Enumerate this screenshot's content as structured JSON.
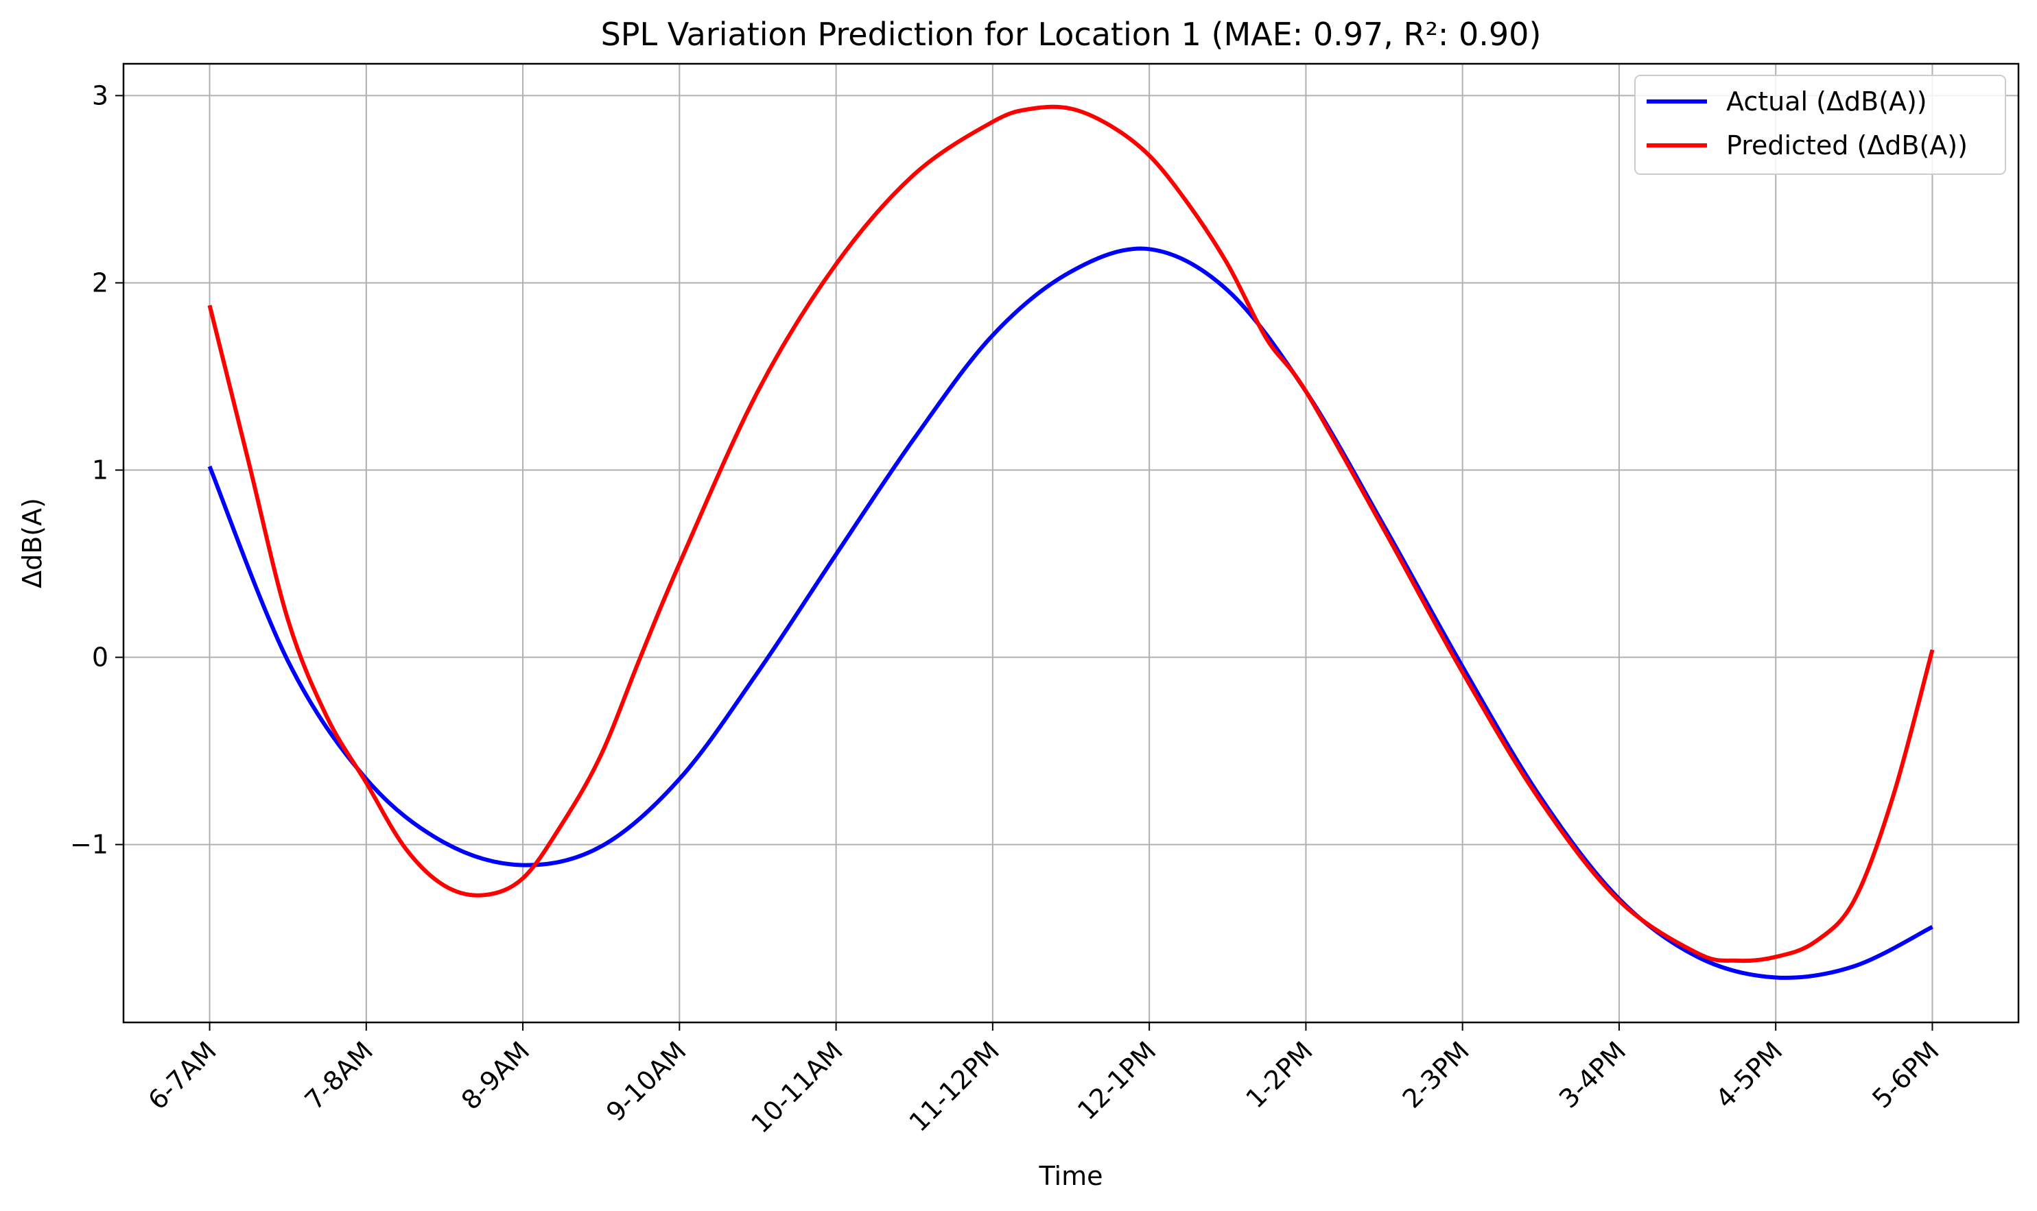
{
  "chart_data": {
    "type": "line",
    "title": "SPL Variation Prediction for Location 1 (MAE: 0.97, R²: 0.90)",
    "xlabel": "Time",
    "ylabel": "ΔdB(A)",
    "categories": [
      "6-7AM",
      "7-8AM",
      "8-9AM",
      "9-10AM",
      "10-11AM",
      "11-12PM",
      "12-1PM",
      "1-2PM",
      "2-3PM",
      "3-4PM",
      "4-5PM",
      "5-6PM"
    ],
    "yticks": [
      -1,
      0,
      1,
      2,
      3
    ],
    "ytick_labels": [
      "−1",
      "0",
      "1",
      "2",
      "3"
    ],
    "xlim": [
      -0.55,
      11.55
    ],
    "ylim": [
      -1.95,
      3.17
    ],
    "grid": true,
    "legend_position": "top-right",
    "series": [
      {
        "name": "Actual (ΔdB(A))",
        "color": "#0000ff",
        "x": [
          0,
          0.5,
          1,
          1.5,
          2,
          2.5,
          3,
          3.5,
          4,
          4.5,
          5,
          5.5,
          6,
          6.5,
          7,
          7.5,
          8,
          8.5,
          9,
          9.5,
          10,
          10.5,
          11
        ],
        "values": [
          1.02,
          -0.02,
          -0.65,
          -0.99,
          -1.11,
          -1.01,
          -0.65,
          -0.08,
          0.55,
          1.17,
          1.72,
          2.06,
          2.18,
          1.96,
          1.42,
          0.7,
          -0.05,
          -0.75,
          -1.29,
          -1.6,
          -1.71,
          -1.65,
          -1.44
        ]
      },
      {
        "name": "Predicted (ΔdB(A))",
        "color": "#ff0000",
        "x": [
          0,
          0.25,
          0.5,
          0.75,
          1,
          1.25,
          1.5,
          1.75,
          2,
          2.25,
          2.5,
          2.75,
          3,
          3.5,
          4,
          4.5,
          5,
          5.25,
          5.5,
          5.75,
          6,
          6.25,
          6.5,
          6.75,
          7,
          7.5,
          8,
          8.5,
          9,
          9.5,
          9.75,
          10,
          10.25,
          10.5,
          10.75,
          11
        ],
        "values": [
          1.88,
          1.04,
          0.2,
          -0.32,
          -0.67,
          -1.02,
          -1.22,
          -1.27,
          -1.18,
          -0.89,
          -0.52,
          0.0,
          0.5,
          1.42,
          2.1,
          2.58,
          2.86,
          2.93,
          2.93,
          2.84,
          2.68,
          2.42,
          2.1,
          1.7,
          1.42,
          0.68,
          -0.08,
          -0.77,
          -1.3,
          -1.58,
          -1.62,
          -1.6,
          -1.52,
          -1.3,
          -0.74,
          0.04
        ]
      }
    ]
  }
}
